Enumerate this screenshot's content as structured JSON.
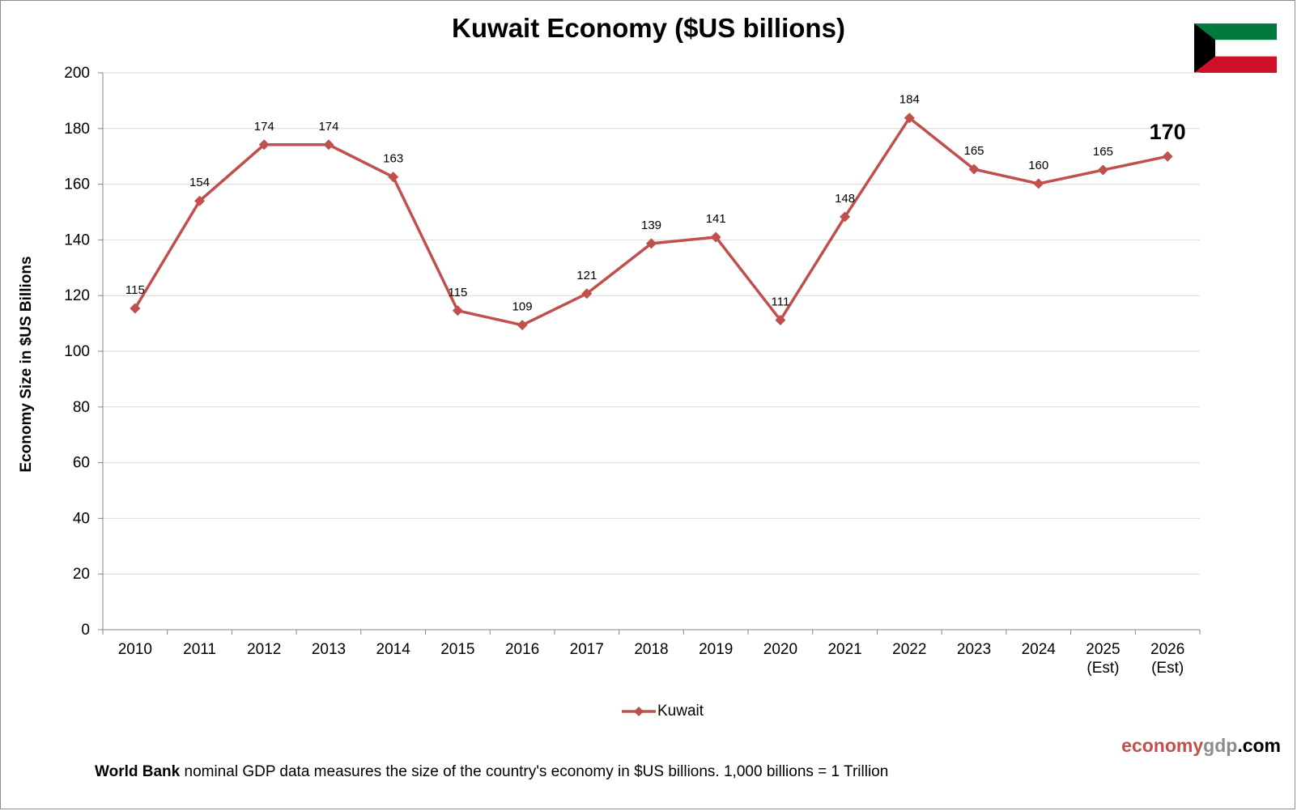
{
  "chart_data": {
    "type": "line",
    "title": "Kuwait Economy ($US billions)",
    "ylabel": "Economy Size in $US Billions",
    "xlabel": "",
    "ylim": [
      0,
      200
    ],
    "yticks": [
      0,
      20,
      40,
      60,
      80,
      100,
      120,
      140,
      160,
      180,
      200
    ],
    "grid": "horizontal",
    "legend": "bottom-center",
    "categories": [
      [
        "2010"
      ],
      [
        "2011"
      ],
      [
        "2012"
      ],
      [
        "2013"
      ],
      [
        "2014"
      ],
      [
        "2015"
      ],
      [
        "2016"
      ],
      [
        "2017"
      ],
      [
        "2018"
      ],
      [
        "2019"
      ],
      [
        "2020"
      ],
      [
        "2021"
      ],
      [
        "2022"
      ],
      [
        "2023"
      ],
      [
        "2024"
      ],
      [
        "2025",
        "(Est)"
      ],
      [
        "2026",
        "(Est)"
      ]
    ],
    "series": [
      {
        "name": "Kuwait",
        "color": "#c0504d",
        "values": [
          115,
          154,
          174,
          174,
          163,
          115,
          109,
          121,
          139,
          141,
          111,
          148,
          184,
          165,
          160,
          165,
          170
        ],
        "plot_values": [
          115.4,
          154.0,
          174.2,
          174.2,
          162.6,
          114.6,
          109.4,
          120.7,
          138.7,
          141.0,
          111.2,
          148.3,
          183.8,
          165.4,
          160.2,
          165.1,
          170.0
        ],
        "highlight_index": 16
      }
    ]
  },
  "legend_label": "Kuwait",
  "brand": {
    "part1": "economy",
    "part2": "gdp",
    "part3": ".com"
  },
  "footnote": {
    "bold": "World Bank",
    "text": " nominal GDP data  measures the size of the country's economy in $US billions.  1,000 billions = 1 Trillion"
  },
  "flag": {
    "green": "#007a3d",
    "white": "#ffffff",
    "red": "#ce1126",
    "black": "#000000"
  }
}
